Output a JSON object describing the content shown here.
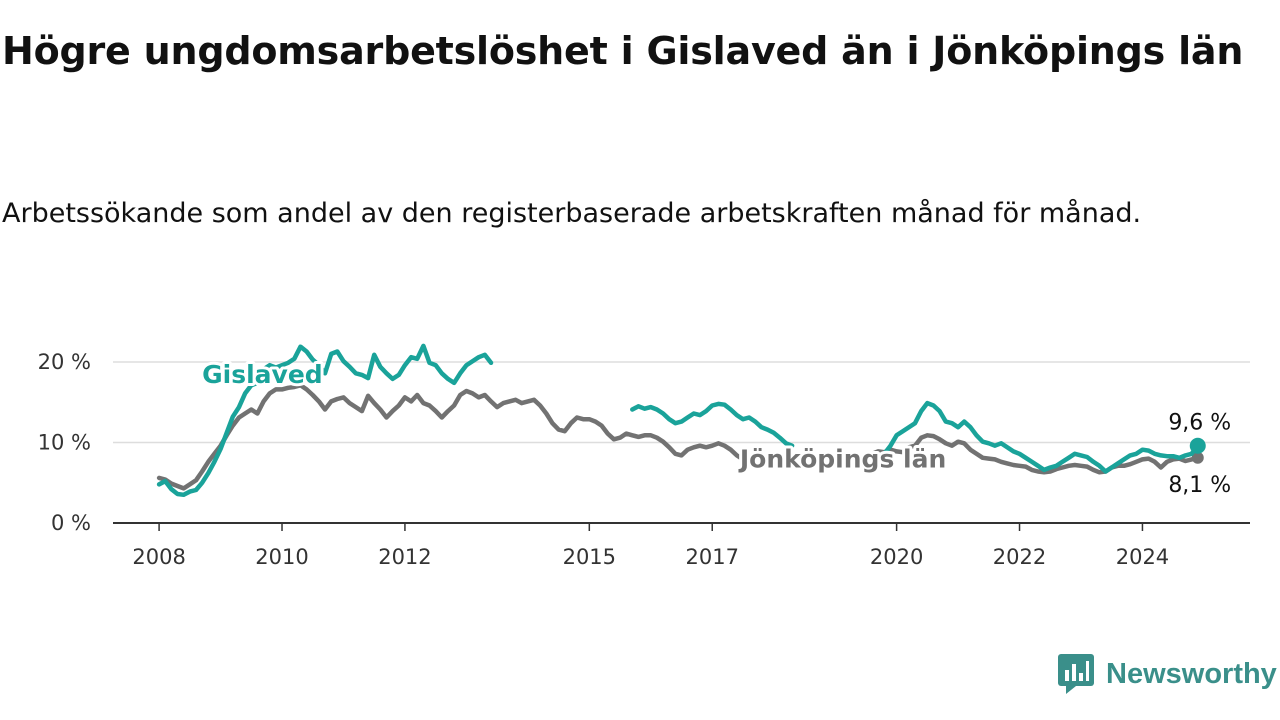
{
  "title": "Högre ungdomsarbetslöshet i Gislaved än i Jönköpings län",
  "subtitle": "Arbetssökande som andel av den registerbaserade arbetskraften månad för månad.",
  "brand": {
    "name": "Newsworthy",
    "icon": "newsworthy-logo-icon"
  },
  "chart_data": {
    "type": "line",
    "title": "Högre ungdomsarbetslöshet i Gislaved än i Jönköpings län",
    "subtitle": "Arbetssökande som andel av den registerbaserade arbetskraften månad för månad.",
    "x_unit": "year (decimal)",
    "xlim": [
      2007.25,
      2025.75
    ],
    "ylim": [
      0,
      20
    ],
    "y_ticks": [
      {
        "value": 0,
        "label": "0 %"
      },
      {
        "value": 10,
        "label": "10 %"
      },
      {
        "value": 20,
        "label": "20 %"
      }
    ],
    "x_ticks": [
      {
        "value": 2008,
        "label": "2008"
      },
      {
        "value": 2010,
        "label": "2010"
      },
      {
        "value": 2012,
        "label": "2012"
      },
      {
        "value": 2015,
        "label": "2015"
      },
      {
        "value": 2017,
        "label": "2017"
      },
      {
        "value": 2020,
        "label": "2020"
      },
      {
        "value": 2022,
        "label": "2022"
      },
      {
        "value": 2024,
        "label": "2024"
      }
    ],
    "grid": "horizontal",
    "colors": {
      "Gislaved": "#1aa39a",
      "Jönköpings län": "#727272",
      "grid": "#dddddd",
      "axis": "#333333"
    },
    "series": [
      {
        "name": "Gislaved",
        "label_at": [
          2008.7,
          17.4
        ],
        "end_label": "9,6 %",
        "points": [
          [
            2008.0,
            4.8
          ],
          [
            2008.1,
            5.2
          ],
          [
            2008.2,
            4.2
          ],
          [
            2008.3,
            3.6
          ],
          [
            2008.4,
            3.5
          ],
          [
            2008.5,
            3.9
          ],
          [
            2008.6,
            4.1
          ],
          [
            2008.7,
            5.0
          ],
          [
            2008.8,
            6.2
          ],
          [
            2008.9,
            7.6
          ],
          [
            2009.0,
            9.2
          ],
          [
            2009.1,
            11.2
          ],
          [
            2009.2,
            13.2
          ],
          [
            2009.3,
            14.4
          ],
          [
            2009.4,
            16.1
          ],
          [
            2009.5,
            17.1
          ],
          [
            2009.6,
            17.4
          ],
          [
            2009.7,
            19.1
          ],
          [
            2009.8,
            19.6
          ],
          [
            2009.9,
            19.3
          ],
          [
            2010.0,
            19.6
          ],
          [
            2010.1,
            19.9
          ],
          [
            2010.2,
            20.4
          ],
          [
            2010.3,
            21.9
          ],
          [
            2010.4,
            21.3
          ],
          [
            2010.5,
            20.3
          ],
          [
            2010.6,
            19.6
          ],
          [
            2010.7,
            18.6
          ],
          [
            2010.8,
            21.0
          ],
          [
            2010.9,
            21.3
          ],
          [
            2011.0,
            20.1
          ],
          [
            2011.1,
            19.4
          ],
          [
            2011.2,
            18.6
          ],
          [
            2011.3,
            18.4
          ],
          [
            2011.4,
            18.0
          ],
          [
            2011.5,
            20.9
          ],
          [
            2011.6,
            19.4
          ],
          [
            2011.7,
            18.6
          ],
          [
            2011.8,
            17.9
          ],
          [
            2011.9,
            18.4
          ],
          [
            2012.0,
            19.6
          ],
          [
            2012.1,
            20.6
          ],
          [
            2012.2,
            20.4
          ],
          [
            2012.3,
            22.0
          ],
          [
            2012.4,
            19.9
          ],
          [
            2012.5,
            19.6
          ],
          [
            2012.6,
            18.6
          ],
          [
            2012.7,
            17.9
          ],
          [
            2012.8,
            17.4
          ],
          [
            2012.9,
            18.6
          ],
          [
            2013.0,
            19.6
          ],
          [
            2013.1,
            20.1
          ],
          [
            2013.2,
            20.6
          ],
          [
            2013.3,
            20.9
          ],
          [
            2013.4,
            19.9
          ],
          [
            2015.7,
            14.1
          ],
          [
            2015.8,
            14.5
          ],
          [
            2015.9,
            14.2
          ],
          [
            2016.0,
            14.4
          ],
          [
            2016.1,
            14.1
          ],
          [
            2016.2,
            13.6
          ],
          [
            2016.3,
            12.9
          ],
          [
            2016.4,
            12.4
          ],
          [
            2016.5,
            12.6
          ],
          [
            2016.6,
            13.1
          ],
          [
            2016.7,
            13.6
          ],
          [
            2016.8,
            13.4
          ],
          [
            2016.9,
            13.9
          ],
          [
            2017.0,
            14.6
          ],
          [
            2017.1,
            14.8
          ],
          [
            2017.2,
            14.7
          ],
          [
            2017.3,
            14.1
          ],
          [
            2017.4,
            13.4
          ],
          [
            2017.5,
            12.9
          ],
          [
            2017.6,
            13.1
          ],
          [
            2017.7,
            12.6
          ],
          [
            2017.8,
            11.9
          ],
          [
            2017.9,
            11.6
          ],
          [
            2018.0,
            11.2
          ],
          [
            2018.1,
            10.6
          ],
          [
            2018.2,
            9.9
          ],
          [
            2018.3,
            9.6
          ],
          [
            2019.7,
            7.9
          ],
          [
            2019.8,
            8.6
          ],
          [
            2019.9,
            9.6
          ],
          [
            2020.0,
            10.9
          ],
          [
            2020.1,
            11.4
          ],
          [
            2020.2,
            11.9
          ],
          [
            2020.3,
            12.4
          ],
          [
            2020.4,
            13.9
          ],
          [
            2020.5,
            14.9
          ],
          [
            2020.6,
            14.6
          ],
          [
            2020.7,
            13.9
          ],
          [
            2020.8,
            12.6
          ],
          [
            2020.9,
            12.4
          ],
          [
            2021.0,
            11.9
          ],
          [
            2021.1,
            12.6
          ],
          [
            2021.2,
            11.9
          ],
          [
            2021.3,
            10.9
          ],
          [
            2021.4,
            10.1
          ],
          [
            2021.5,
            9.9
          ],
          [
            2021.6,
            9.6
          ],
          [
            2021.7,
            9.9
          ],
          [
            2021.8,
            9.4
          ],
          [
            2021.9,
            8.9
          ],
          [
            2022.0,
            8.6
          ],
          [
            2022.1,
            8.1
          ],
          [
            2022.2,
            7.6
          ],
          [
            2022.3,
            7.1
          ],
          [
            2022.4,
            6.6
          ],
          [
            2022.5,
            6.9
          ],
          [
            2022.6,
            7.1
          ],
          [
            2022.7,
            7.6
          ],
          [
            2022.8,
            8.1
          ],
          [
            2022.9,
            8.6
          ],
          [
            2023.0,
            8.4
          ],
          [
            2023.1,
            8.2
          ],
          [
            2023.2,
            7.6
          ],
          [
            2023.3,
            7.1
          ],
          [
            2023.4,
            6.4
          ],
          [
            2023.5,
            6.9
          ],
          [
            2023.6,
            7.4
          ],
          [
            2023.7,
            7.9
          ],
          [
            2023.8,
            8.4
          ],
          [
            2023.9,
            8.6
          ],
          [
            2024.0,
            9.1
          ],
          [
            2024.1,
            9.0
          ],
          [
            2024.2,
            8.6
          ],
          [
            2024.3,
            8.4
          ],
          [
            2024.4,
            8.3
          ],
          [
            2024.5,
            8.3
          ],
          [
            2024.6,
            8.1
          ],
          [
            2024.7,
            8.4
          ],
          [
            2024.8,
            8.6
          ],
          [
            2024.9,
            9.6
          ]
        ]
      },
      {
        "name": "Jönköpings län",
        "label_at": [
          2017.45,
          6.9
        ],
        "end_label": "8,1 %",
        "points": [
          [
            2008.0,
            5.6
          ],
          [
            2008.1,
            5.4
          ],
          [
            2008.2,
            4.9
          ],
          [
            2008.3,
            4.6
          ],
          [
            2008.4,
            4.3
          ],
          [
            2008.5,
            4.8
          ],
          [
            2008.6,
            5.3
          ],
          [
            2008.7,
            6.4
          ],
          [
            2008.8,
            7.6
          ],
          [
            2008.9,
            8.6
          ],
          [
            2009.0,
            9.6
          ],
          [
            2009.1,
            10.9
          ],
          [
            2009.2,
            12.1
          ],
          [
            2009.3,
            13.1
          ],
          [
            2009.4,
            13.6
          ],
          [
            2009.5,
            14.1
          ],
          [
            2009.6,
            13.6
          ],
          [
            2009.7,
            15.1
          ],
          [
            2009.8,
            16.1
          ],
          [
            2009.9,
            16.6
          ],
          [
            2010.0,
            16.6
          ],
          [
            2010.1,
            16.8
          ],
          [
            2010.2,
            16.9
          ],
          [
            2010.3,
            17.1
          ],
          [
            2010.4,
            16.6
          ],
          [
            2010.5,
            15.9
          ],
          [
            2010.6,
            15.1
          ],
          [
            2010.7,
            14.1
          ],
          [
            2010.8,
            15.1
          ],
          [
            2010.9,
            15.4
          ],
          [
            2011.0,
            15.6
          ],
          [
            2011.1,
            14.9
          ],
          [
            2011.2,
            14.4
          ],
          [
            2011.3,
            13.9
          ],
          [
            2011.4,
            15.8
          ],
          [
            2011.5,
            14.9
          ],
          [
            2011.6,
            14.1
          ],
          [
            2011.7,
            13.1
          ],
          [
            2011.8,
            13.9
          ],
          [
            2011.9,
            14.6
          ],
          [
            2012.0,
            15.6
          ],
          [
            2012.1,
            15.1
          ],
          [
            2012.2,
            15.9
          ],
          [
            2012.3,
            14.9
          ],
          [
            2012.4,
            14.6
          ],
          [
            2012.5,
            13.9
          ],
          [
            2012.6,
            13.1
          ],
          [
            2012.7,
            13.9
          ],
          [
            2012.8,
            14.6
          ],
          [
            2012.9,
            15.9
          ],
          [
            2013.0,
            16.4
          ],
          [
            2013.1,
            16.1
          ],
          [
            2013.2,
            15.6
          ],
          [
            2013.3,
            15.9
          ],
          [
            2013.4,
            15.1
          ],
          [
            2013.5,
            14.4
          ],
          [
            2013.6,
            14.9
          ],
          [
            2013.7,
            15.1
          ],
          [
            2013.8,
            15.3
          ],
          [
            2013.9,
            14.9
          ],
          [
            2014.0,
            15.1
          ],
          [
            2014.1,
            15.3
          ],
          [
            2014.2,
            14.6
          ],
          [
            2014.3,
            13.6
          ],
          [
            2014.4,
            12.4
          ],
          [
            2014.5,
            11.6
          ],
          [
            2014.6,
            11.4
          ],
          [
            2014.7,
            12.4
          ],
          [
            2014.8,
            13.1
          ],
          [
            2014.9,
            12.9
          ],
          [
            2015.0,
            12.9
          ],
          [
            2015.1,
            12.6
          ],
          [
            2015.2,
            12.1
          ],
          [
            2015.3,
            11.1
          ],
          [
            2015.4,
            10.4
          ],
          [
            2015.5,
            10.6
          ],
          [
            2015.6,
            11.1
          ],
          [
            2015.7,
            10.9
          ],
          [
            2015.8,
            10.7
          ],
          [
            2015.9,
            10.9
          ],
          [
            2016.0,
            10.9
          ],
          [
            2016.1,
            10.6
          ],
          [
            2016.2,
            10.1
          ],
          [
            2016.3,
            9.4
          ],
          [
            2016.4,
            8.6
          ],
          [
            2016.5,
            8.4
          ],
          [
            2016.6,
            9.1
          ],
          [
            2016.7,
            9.4
          ],
          [
            2016.8,
            9.6
          ],
          [
            2016.9,
            9.4
          ],
          [
            2017.0,
            9.6
          ],
          [
            2017.1,
            9.9
          ],
          [
            2017.2,
            9.6
          ],
          [
            2017.3,
            9.1
          ],
          [
            2017.4,
            8.4
          ],
          [
            2017.5,
            7.9
          ],
          [
            2019.5,
            8.4
          ],
          [
            2019.6,
            8.6
          ],
          [
            2019.7,
            8.9
          ],
          [
            2019.8,
            8.8
          ],
          [
            2019.9,
            9.1
          ],
          [
            2020.0,
            8.9
          ],
          [
            2020.1,
            8.8
          ],
          [
            2020.2,
            9.4
          ],
          [
            2020.3,
            9.6
          ],
          [
            2020.4,
            10.6
          ],
          [
            2020.5,
            10.9
          ],
          [
            2020.6,
            10.8
          ],
          [
            2020.7,
            10.4
          ],
          [
            2020.8,
            9.9
          ],
          [
            2020.9,
            9.6
          ],
          [
            2021.0,
            10.1
          ],
          [
            2021.1,
            9.9
          ],
          [
            2021.2,
            9.1
          ],
          [
            2021.3,
            8.6
          ],
          [
            2021.4,
            8.1
          ],
          [
            2021.5,
            8.0
          ],
          [
            2021.6,
            7.9
          ],
          [
            2021.7,
            7.6
          ],
          [
            2021.8,
            7.4
          ],
          [
            2021.9,
            7.2
          ],
          [
            2022.0,
            7.1
          ],
          [
            2022.1,
            7.0
          ],
          [
            2022.2,
            6.6
          ],
          [
            2022.3,
            6.4
          ],
          [
            2022.4,
            6.3
          ],
          [
            2022.5,
            6.4
          ],
          [
            2022.6,
            6.7
          ],
          [
            2022.7,
            6.9
          ],
          [
            2022.8,
            7.1
          ],
          [
            2022.9,
            7.2
          ],
          [
            2023.0,
            7.1
          ],
          [
            2023.1,
            7.0
          ],
          [
            2023.2,
            6.6
          ],
          [
            2023.3,
            6.3
          ],
          [
            2023.4,
            6.4
          ],
          [
            2023.5,
            6.9
          ],
          [
            2023.6,
            7.1
          ],
          [
            2023.7,
            7.1
          ],
          [
            2023.8,
            7.3
          ],
          [
            2023.9,
            7.6
          ],
          [
            2024.0,
            7.9
          ],
          [
            2024.1,
            8.0
          ],
          [
            2024.2,
            7.6
          ],
          [
            2024.3,
            6.9
          ],
          [
            2024.4,
            7.6
          ],
          [
            2024.5,
            7.9
          ],
          [
            2024.6,
            8.0
          ],
          [
            2024.7,
            7.7
          ],
          [
            2024.8,
            7.9
          ],
          [
            2024.9,
            8.1
          ]
        ]
      }
    ]
  }
}
